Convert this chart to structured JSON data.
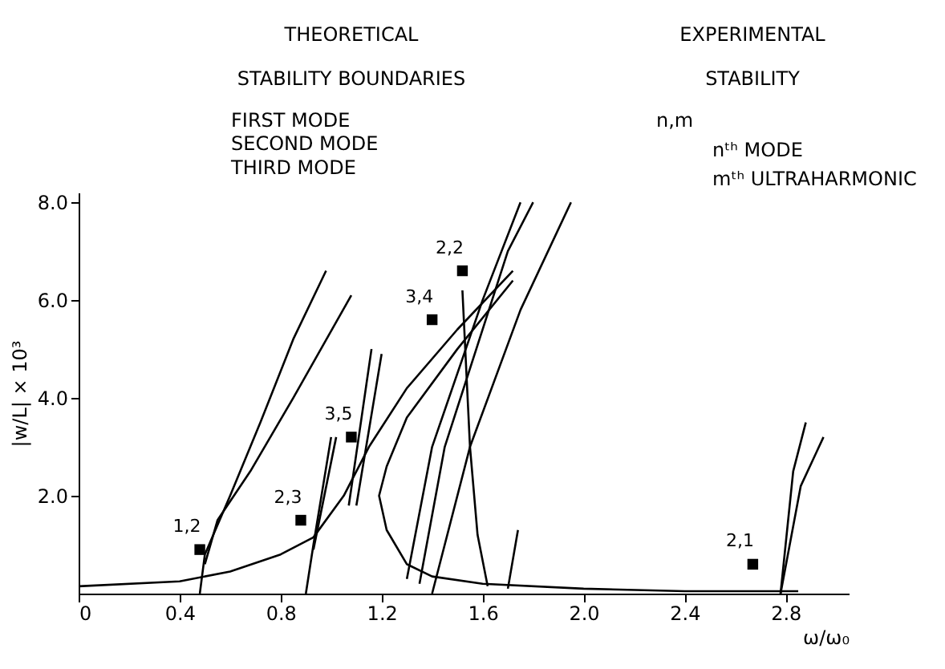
{
  "chart_data": {
    "type": "line",
    "xlabel": "ω/ω₀",
    "ylabel": "|w/L| × 10³",
    "xlim": [
      0,
      3.05
    ],
    "ylim": [
      0,
      8.2
    ],
    "xticks": [
      {
        "value": 0,
        "label": "0"
      },
      {
        "value": 0.4,
        "label": "0.4"
      },
      {
        "value": 0.8,
        "label": "0.8"
      },
      {
        "value": 1.2,
        "label": "1.2"
      },
      {
        "value": 1.6,
        "label": "1.6"
      },
      {
        "value": 2.0,
        "label": "2.0"
      },
      {
        "value": 2.4,
        "label": "2.4"
      },
      {
        "value": 2.8,
        "label": "2.8"
      }
    ],
    "yticks": [
      {
        "value": 2.0,
        "label": "2.0"
      },
      {
        "value": 4.0,
        "label": "4.0"
      },
      {
        "value": 6.0,
        "label": "6.0"
      },
      {
        "value": 8.0,
        "label": "8.0"
      }
    ],
    "grid": false,
    "line_style": "solid",
    "marker": "none",
    "series": [
      {
        "color": "#000000",
        "x": [
          0,
          0.4,
          0.6,
          0.8,
          0.93,
          1.05,
          1.15,
          1.3,
          1.5,
          1.72
        ],
        "values": [
          0.15,
          0.25,
          0.45,
          0.8,
          1.15,
          2.0,
          3.0,
          4.2,
          5.4,
          6.6
        ]
      },
      {
        "type": "line",
        "color": "#000000",
        "x": [
          1.72,
          1.5,
          1.3,
          1.22,
          1.19,
          1.22,
          1.3,
          1.4,
          1.6,
          2.0,
          2.4,
          2.85
        ],
        "values": [
          6.4,
          5.0,
          3.6,
          2.6,
          2.0,
          1.3,
          0.6,
          0.35,
          0.2,
          0.1,
          0.05,
          0.05
        ]
      },
      {
        "type": "line",
        "color": "#000000",
        "x": [
          1.52,
          1.55,
          1.58,
          1.62
        ],
        "values": [
          6.2,
          3.0,
          1.2,
          0.15
        ]
      },
      {
        "type": "line",
        "color": "#000000",
        "x": [
          0.48,
          0.5,
          0.6,
          0.72,
          0.85,
          0.98
        ],
        "values": [
          0.0,
          0.8,
          2.0,
          3.5,
          5.2,
          6.6
        ]
      },
      {
        "type": "line",
        "color": "#000000",
        "x": [
          0.5,
          0.55,
          0.68,
          0.85,
          1.08
        ],
        "values": [
          0.6,
          1.5,
          2.5,
          4.0,
          6.1
        ]
      },
      {
        "type": "line",
        "color": "#000000",
        "x": [
          0.9,
          0.93,
          1.0
        ],
        "values": [
          0.0,
          1.0,
          3.2
        ]
      },
      {
        "type": "line",
        "color": "#000000",
        "x": [
          0.93,
          1.02
        ],
        "values": [
          0.9,
          3.2
        ]
      },
      {
        "type": "line",
        "color": "#000000",
        "x": [
          1.07,
          1.16
        ],
        "values": [
          1.8,
          5.0
        ]
      },
      {
        "type": "line",
        "color": "#000000",
        "x": [
          1.1,
          1.2
        ],
        "values": [
          1.8,
          4.9
        ]
      },
      {
        "type": "line",
        "color": "#000000",
        "x": [
          1.3,
          1.4,
          1.6,
          1.75
        ],
        "values": [
          0.3,
          3.0,
          6.0,
          8.0
        ]
      },
      {
        "type": "line",
        "color": "#000000",
        "x": [
          1.35,
          1.45,
          1.7,
          1.8
        ],
        "values": [
          0.2,
          3.0,
          7.0,
          8.0
        ]
      },
      {
        "type": "line",
        "color": "#000000",
        "x": [
          1.4,
          1.55,
          1.75,
          1.95
        ],
        "values": [
          0.0,
          3.0,
          5.8,
          8.0
        ]
      },
      {
        "type": "line",
        "color": "#000000",
        "x": [
          1.7,
          1.74
        ],
        "values": [
          0.1,
          1.3
        ]
      },
      {
        "type": "line",
        "color": "#000000",
        "x": [
          2.78,
          2.83,
          2.88
        ],
        "values": [
          0.0,
          2.5,
          3.5
        ]
      },
      {
        "type": "line",
        "color": "#000000",
        "x": [
          2.78,
          2.86,
          2.95
        ],
        "values": [
          0.0,
          2.2,
          3.2
        ]
      },
      {
        "type": "scatter",
        "color": "#000000",
        "marker": "square",
        "x": [
          0.48,
          0.88,
          1.08,
          1.4,
          1.52,
          2.67
        ],
        "values": [
          0.9,
          1.5,
          3.2,
          5.6,
          6.6,
          0.6
        ]
      }
    ],
    "annotations": [
      "THEORETICAL",
      "STABILITY BOUNDARIES",
      "FIRST MODE",
      "SECOND MODE",
      "THIRD MODE",
      "EXPERIMENTAL",
      "STABILITY",
      "n,m",
      "nᵗʰ MODE",
      "mᵗʰ ULTRAHARMONIC",
      {
        "text": "1,2",
        "x": 0.48,
        "y": 0.9
      },
      {
        "text": "2,3",
        "x": 0.88,
        "y": 1.5
      },
      {
        "text": "3,5",
        "x": 1.08,
        "y": 3.2
      },
      {
        "text": "3,4",
        "x": 1.4,
        "y": 5.6
      },
      {
        "text": "2,2",
        "x": 1.52,
        "y": 6.6
      },
      {
        "text": "2,1",
        "x": 2.67,
        "y": 0.6
      }
    ]
  }
}
